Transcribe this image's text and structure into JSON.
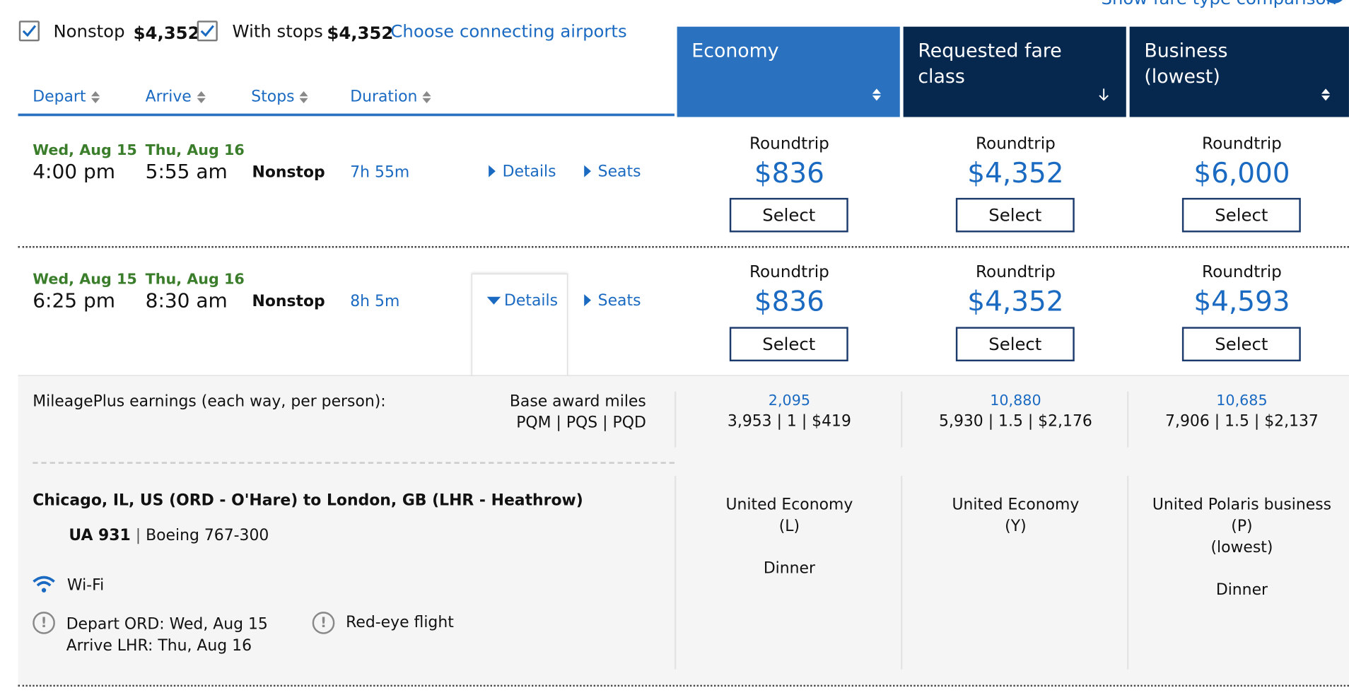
{
  "top_link": "Show fare type comparison",
  "filters": {
    "nonstop_label": "Nonstop",
    "nonstop_price": "$4,352",
    "nonstop_checked": true,
    "stops_label": "With stops",
    "stops_price": "$4,352",
    "stops_checked": true,
    "connecting_link": "Choose connecting airports"
  },
  "sort_headers": [
    "Depart",
    "Arrive",
    "Stops",
    "Duration"
  ],
  "fare_columns": [
    {
      "title": "Economy",
      "subtitle": "",
      "color": "#2a72bf"
    },
    {
      "title": "Requested fare class",
      "subtitle": "",
      "color": "#06284f"
    },
    {
      "title": "Business",
      "subtitle": "(lowest)",
      "color": "#06284f"
    }
  ],
  "flights": [
    {
      "depart_date": "Wed, Aug 15",
      "depart_time": "4:00 pm",
      "arrive_date": "Thu, Aug 16",
      "arrive_time": "5:55 am",
      "stops": "Nonstop",
      "duration": "7h 55m",
      "details": "Details",
      "seats": "Seats",
      "fares": [
        {
          "label": "Roundtrip",
          "price": "$836",
          "button": "Select"
        },
        {
          "label": "Roundtrip",
          "price": "$4,352",
          "button": "Select"
        },
        {
          "label": "Roundtrip",
          "price": "$6,000",
          "button": "Select"
        }
      ]
    },
    {
      "depart_date": "Wed, Aug 15",
      "depart_time": "6:25 pm",
      "arrive_date": "Thu, Aug 16",
      "arrive_time": "8:30 am",
      "stops": "Nonstop",
      "duration": "8h 5m",
      "details": "Details",
      "seats": "Seats",
      "fares": [
        {
          "label": "Roundtrip",
          "price": "$836",
          "button": "Select"
        },
        {
          "label": "Roundtrip",
          "price": "$4,352",
          "button": "Select"
        },
        {
          "label": "Roundtrip",
          "price": "$4,593",
          "button": "Select"
        }
      ]
    }
  ],
  "details_panel": {
    "mileage_label": "MileagePlus earnings (each way, per person):",
    "base_award_label": "Base award miles",
    "pq_label": "PQM | PQS | PQD",
    "earnings": [
      {
        "miles": "2,095",
        "pq": "3,953 | 1 | $419"
      },
      {
        "miles": "10,880",
        "pq": "5,930 | 1.5 | $2,176"
      },
      {
        "miles": "10,685",
        "pq": "7,906 | 1.5 | $2,137"
      }
    ],
    "route": "Chicago, IL, US (ORD - O'Hare) to London, GB (LHR - Heathrow)",
    "flight_no": "UA 931",
    "aircraft": "Boeing 767-300",
    "wifi": "Wi-Fi",
    "depart_note": "Depart ORD: Wed, Aug 15",
    "arrive_note": "Arrive LHR: Thu, Aug 16",
    "redeye": "Red-eye flight",
    "cabins": [
      {
        "name": "United Economy",
        "code": "(L)",
        "sub": "",
        "meal": "Dinner"
      },
      {
        "name": "United Economy",
        "code": "(Y)",
        "sub": "",
        "meal": ""
      },
      {
        "name": "United Polaris business",
        "code": "(P)",
        "sub": "(lowest)",
        "meal": "Dinner"
      }
    ]
  }
}
